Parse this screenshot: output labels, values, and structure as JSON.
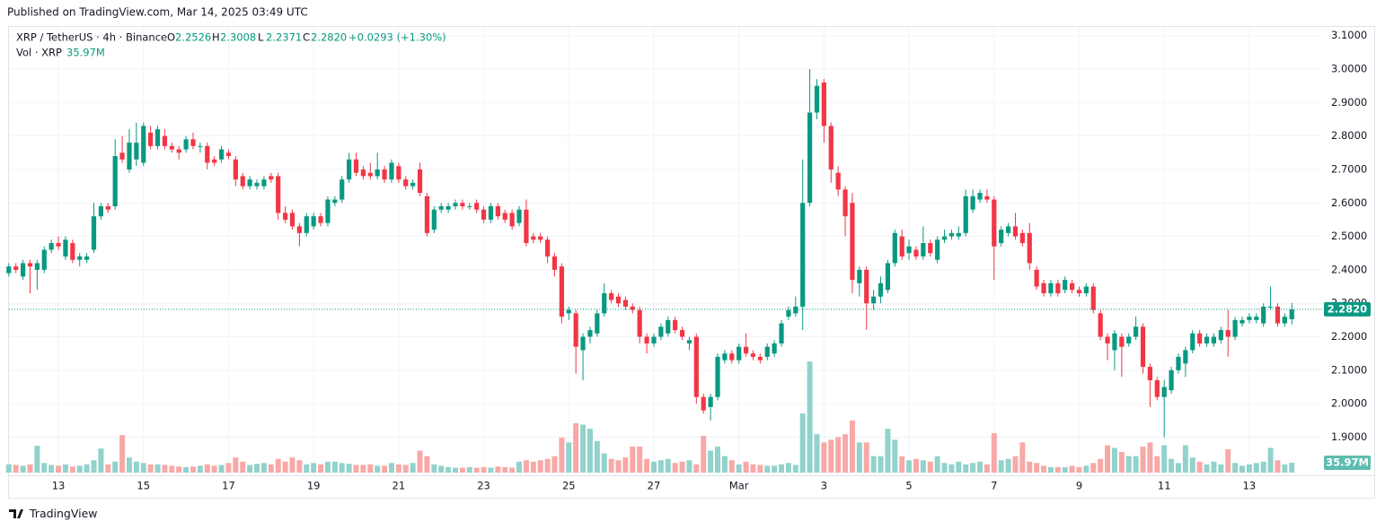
{
  "header": {
    "published": "Published on TradingView.com, Mar 14, 2025 03:49 UTC"
  },
  "legend": {
    "symbol": "XRP / TetherUS · 4h · Binance",
    "ohlc": [
      {
        "key": "O",
        "value": "2.2526"
      },
      {
        "key": "H",
        "value": "2.3008"
      },
      {
        "key": "L",
        "value": "2.2371"
      },
      {
        "key": "C",
        "value": "2.2820"
      }
    ],
    "change": "+0.0293 (+1.30%)",
    "volume_name": "Vol · XRP",
    "volume_value": "35.97M"
  },
  "footer": {
    "brand": "TradingView"
  },
  "chart_data": {
    "type": "candlestick",
    "grid": true,
    "up_color": "#089981",
    "down_color": "#f23645",
    "volume_up_color": "#92d2cc",
    "volume_down_color": "#f7a9a7",
    "ylim": [
      1.786,
      3.126
    ],
    "yticks": [
      {
        "value": 1.9,
        "label": "1.9000"
      },
      {
        "value": 2.0,
        "label": "2.0000"
      },
      {
        "value": 2.1,
        "label": "2.1000"
      },
      {
        "value": 2.2,
        "label": "2.2000"
      },
      {
        "value": 2.3,
        "label": "2.3000"
      },
      {
        "value": 2.4,
        "label": "2.4000"
      },
      {
        "value": 2.5,
        "label": "2.5000"
      },
      {
        "value": 2.6,
        "label": "2.6000"
      },
      {
        "value": 2.7,
        "label": "2.7000"
      },
      {
        "value": 2.8,
        "label": "2.8000"
      },
      {
        "value": 2.9,
        "label": "2.9000"
      },
      {
        "value": 3.0,
        "label": "3.0000"
      },
      {
        "value": 3.1,
        "label": "3.1000"
      }
    ],
    "volume_ylim": [
      0,
      1625
    ],
    "categories": [
      null,
      null,
      null,
      null,
      null,
      null,
      null,
      "13",
      null,
      null,
      null,
      null,
      null,
      null,
      null,
      null,
      null,
      null,
      null,
      "15",
      null,
      null,
      null,
      null,
      null,
      null,
      null,
      null,
      null,
      null,
      null,
      "17",
      null,
      null,
      null,
      null,
      null,
      null,
      null,
      null,
      null,
      null,
      null,
      "19",
      null,
      null,
      null,
      null,
      null,
      null,
      null,
      null,
      null,
      null,
      null,
      "21",
      null,
      null,
      null,
      null,
      null,
      null,
      null,
      null,
      null,
      null,
      null,
      "23",
      null,
      null,
      null,
      null,
      null,
      null,
      null,
      null,
      null,
      null,
      null,
      "25",
      null,
      null,
      null,
      null,
      null,
      null,
      null,
      null,
      null,
      null,
      null,
      "27",
      null,
      null,
      null,
      null,
      null,
      null,
      null,
      null,
      null,
      null,
      null,
      "Mar",
      null,
      null,
      null,
      null,
      null,
      null,
      null,
      null,
      null,
      null,
      null,
      "3",
      null,
      null,
      null,
      null,
      null,
      null,
      null,
      null,
      null,
      null,
      null,
      "5",
      null,
      null,
      null,
      null,
      null,
      null,
      null,
      null,
      null,
      null,
      null,
      "7",
      null,
      null,
      null,
      null,
      null,
      null,
      null,
      null,
      null,
      null,
      null,
      "9",
      null,
      null,
      null,
      null,
      null,
      null,
      null,
      null,
      null,
      null,
      null,
      "11",
      null,
      null,
      null,
      null,
      null,
      null,
      null,
      null,
      null,
      null,
      null,
      "13",
      null,
      null,
      null,
      null,
      null,
      null
    ],
    "ohlc": [
      [
        2.39,
        2.42,
        2.38,
        2.41
      ],
      [
        2.41,
        2.42,
        2.39,
        2.4
      ],
      [
        2.38,
        2.43,
        2.37,
        2.42
      ],
      [
        2.42,
        2.43,
        2.33,
        2.41
      ],
      [
        2.4,
        2.43,
        2.34,
        2.42
      ],
      [
        2.4,
        2.47,
        2.39,
        2.46
      ],
      [
        2.46,
        2.49,
        2.45,
        2.48
      ],
      [
        2.48,
        2.5,
        2.46,
        2.47
      ],
      [
        2.44,
        2.5,
        2.43,
        2.49
      ],
      [
        2.48,
        2.49,
        2.42,
        2.43
      ],
      [
        2.43,
        2.45,
        2.41,
        2.44
      ],
      [
        2.43,
        2.45,
        2.42,
        2.44
      ],
      [
        2.46,
        2.6,
        2.45,
        2.56
      ],
      [
        2.56,
        2.6,
        2.55,
        2.59
      ],
      [
        2.59,
        2.6,
        2.57,
        2.58
      ],
      [
        2.59,
        2.79,
        2.58,
        2.74
      ],
      [
        2.75,
        2.8,
        2.72,
        2.73
      ],
      [
        2.7,
        2.82,
        2.69,
        2.78
      ],
      [
        2.73,
        2.84,
        2.71,
        2.78
      ],
      [
        2.72,
        2.84,
        2.71,
        2.83
      ],
      [
        2.81,
        2.83,
        2.76,
        2.77
      ],
      [
        2.77,
        2.83,
        2.76,
        2.82
      ],
      [
        2.8,
        2.82,
        2.76,
        2.77
      ],
      [
        2.77,
        2.78,
        2.75,
        2.76
      ],
      [
        2.76,
        2.77,
        2.73,
        2.75
      ],
      [
        2.76,
        2.8,
        2.75,
        2.79
      ],
      [
        2.79,
        2.81,
        2.76,
        2.77
      ],
      [
        2.77,
        2.78,
        2.75,
        2.77
      ],
      [
        2.77,
        2.78,
        2.7,
        2.72
      ],
      [
        2.73,
        2.74,
        2.71,
        2.72
      ],
      [
        2.73,
        2.77,
        2.72,
        2.76
      ],
      [
        2.75,
        2.76,
        2.73,
        2.74
      ],
      [
        2.73,
        2.74,
        2.65,
        2.67
      ],
      [
        2.68,
        2.69,
        2.64,
        2.65
      ],
      [
        2.65,
        2.68,
        2.64,
        2.67
      ],
      [
        2.65,
        2.67,
        2.64,
        2.66
      ],
      [
        2.65,
        2.68,
        2.64,
        2.67
      ],
      [
        2.68,
        2.69,
        2.66,
        2.67
      ],
      [
        2.68,
        2.69,
        2.55,
        2.57
      ],
      [
        2.57,
        2.59,
        2.54,
        2.55
      ],
      [
        2.57,
        2.58,
        2.52,
        2.53
      ],
      [
        2.53,
        2.54,
        2.47,
        2.51
      ],
      [
        2.51,
        2.57,
        2.5,
        2.56
      ],
      [
        2.53,
        2.57,
        2.52,
        2.56
      ],
      [
        2.56,
        2.57,
        2.53,
        2.54
      ],
      [
        2.54,
        2.62,
        2.53,
        2.61
      ],
      [
        2.6,
        2.62,
        2.59,
        2.61
      ],
      [
        2.61,
        2.68,
        2.6,
        2.67
      ],
      [
        2.67,
        2.75,
        2.66,
        2.73
      ],
      [
        2.73,
        2.75,
        2.68,
        2.69
      ],
      [
        2.7,
        2.71,
        2.67,
        2.68
      ],
      [
        2.69,
        2.72,
        2.67,
        2.68
      ],
      [
        2.68,
        2.75,
        2.67,
        2.7
      ],
      [
        2.7,
        2.71,
        2.66,
        2.67
      ],
      [
        2.67,
        2.73,
        2.66,
        2.72
      ],
      [
        2.71,
        2.72,
        2.66,
        2.67
      ],
      [
        2.67,
        2.68,
        2.64,
        2.65
      ],
      [
        2.65,
        2.67,
        2.64,
        2.66
      ],
      [
        2.7,
        2.72,
        2.62,
        2.63
      ],
      [
        2.62,
        2.63,
        2.5,
        2.51
      ],
      [
        2.52,
        2.59,
        2.51,
        2.58
      ],
      [
        2.58,
        2.6,
        2.57,
        2.59
      ],
      [
        2.58,
        2.6,
        2.57,
        2.59
      ],
      [
        2.59,
        2.61,
        2.58,
        2.6
      ],
      [
        2.6,
        2.61,
        2.58,
        2.59
      ],
      [
        2.59,
        2.6,
        2.58,
        2.59
      ],
      [
        2.6,
        2.61,
        2.57,
        2.58
      ],
      [
        2.58,
        2.59,
        2.54,
        2.55
      ],
      [
        2.55,
        2.6,
        2.54,
        2.59
      ],
      [
        2.59,
        2.6,
        2.55,
        2.56
      ],
      [
        2.57,
        2.58,
        2.54,
        2.55
      ],
      [
        2.57,
        2.58,
        2.52,
        2.53
      ],
      [
        2.54,
        2.59,
        2.53,
        2.58
      ],
      [
        2.58,
        2.61,
        2.47,
        2.48
      ],
      [
        2.5,
        2.51,
        2.48,
        2.49
      ],
      [
        2.5,
        2.51,
        2.48,
        2.49
      ],
      [
        2.49,
        2.5,
        2.42,
        2.44
      ],
      [
        2.44,
        2.45,
        2.38,
        2.4
      ],
      [
        2.41,
        2.42,
        2.24,
        2.26
      ],
      [
        2.27,
        2.29,
        2.25,
        2.28
      ],
      [
        2.27,
        2.28,
        2.09,
        2.17
      ],
      [
        2.16,
        2.21,
        2.07,
        2.2
      ],
      [
        2.2,
        2.23,
        2.18,
        2.22
      ],
      [
        2.21,
        2.28,
        2.2,
        2.27
      ],
      [
        2.27,
        2.36,
        2.26,
        2.33
      ],
      [
        2.33,
        2.34,
        2.3,
        2.31
      ],
      [
        2.32,
        2.33,
        2.29,
        2.3
      ],
      [
        2.31,
        2.32,
        2.28,
        2.29
      ],
      [
        2.29,
        2.3,
        2.27,
        2.28
      ],
      [
        2.28,
        2.29,
        2.18,
        2.2
      ],
      [
        2.2,
        2.21,
        2.15,
        2.18
      ],
      [
        2.18,
        2.21,
        2.17,
        2.2
      ],
      [
        2.2,
        2.24,
        2.19,
        2.23
      ],
      [
        2.21,
        2.26,
        2.2,
        2.25
      ],
      [
        2.25,
        2.26,
        2.21,
        2.22
      ],
      [
        2.22,
        2.23,
        2.19,
        2.2
      ],
      [
        2.18,
        2.2,
        2.16,
        2.19
      ],
      [
        2.2,
        2.21,
        2.0,
        2.02
      ],
      [
        2.02,
        2.03,
        1.97,
        1.98
      ],
      [
        1.99,
        2.03,
        1.95,
        2.02
      ],
      [
        2.02,
        2.15,
        2.01,
        2.14
      ],
      [
        2.13,
        2.16,
        2.12,
        2.15
      ],
      [
        2.15,
        2.16,
        2.12,
        2.13
      ],
      [
        2.13,
        2.18,
        2.12,
        2.17
      ],
      [
        2.17,
        2.21,
        2.14,
        2.15
      ],
      [
        2.15,
        2.16,
        2.13,
        2.14
      ],
      [
        2.14,
        2.15,
        2.12,
        2.13
      ],
      [
        2.14,
        2.18,
        2.13,
        2.17
      ],
      [
        2.15,
        2.19,
        2.14,
        2.18
      ],
      [
        2.18,
        2.25,
        2.17,
        2.24
      ],
      [
        2.26,
        2.29,
        2.25,
        2.28
      ],
      [
        2.27,
        2.32,
        2.26,
        2.29
      ],
      [
        2.29,
        2.73,
        2.22,
        2.6
      ],
      [
        2.6,
        3.0,
        2.59,
        2.87
      ],
      [
        2.87,
        2.97,
        2.85,
        2.95
      ],
      [
        2.96,
        2.97,
        2.78,
        2.83
      ],
      [
        2.83,
        2.84,
        2.66,
        2.7
      ],
      [
        2.69,
        2.71,
        2.62,
        2.64
      ],
      [
        2.64,
        2.65,
        2.5,
        2.56
      ],
      [
        2.6,
        2.63,
        2.33,
        2.37
      ],
      [
        2.36,
        2.41,
        2.32,
        2.4
      ],
      [
        2.4,
        2.41,
        2.22,
        2.3
      ],
      [
        2.3,
        2.34,
        2.28,
        2.32
      ],
      [
        2.32,
        2.38,
        2.3,
        2.36
      ],
      [
        2.34,
        2.43,
        2.33,
        2.42
      ],
      [
        2.42,
        2.52,
        2.41,
        2.51
      ],
      [
        2.5,
        2.52,
        2.43,
        2.44
      ],
      [
        2.45,
        2.49,
        2.43,
        2.47
      ],
      [
        2.46,
        2.47,
        2.43,
        2.44
      ],
      [
        2.44,
        2.53,
        2.43,
        2.48
      ],
      [
        2.48,
        2.49,
        2.44,
        2.45
      ],
      [
        2.43,
        2.5,
        2.42,
        2.49
      ],
      [
        2.49,
        2.52,
        2.48,
        2.5
      ],
      [
        2.5,
        2.52,
        2.49,
        2.51
      ],
      [
        2.5,
        2.53,
        2.49,
        2.51
      ],
      [
        2.51,
        2.64,
        2.5,
        2.62
      ],
      [
        2.58,
        2.64,
        2.57,
        2.62
      ],
      [
        2.61,
        2.64,
        2.6,
        2.63
      ],
      [
        2.62,
        2.64,
        2.6,
        2.61
      ],
      [
        2.61,
        2.62,
        2.37,
        2.47
      ],
      [
        2.48,
        2.53,
        2.47,
        2.52
      ],
      [
        2.51,
        2.54,
        2.5,
        2.53
      ],
      [
        2.53,
        2.57,
        2.49,
        2.5
      ],
      [
        2.51,
        2.52,
        2.47,
        2.48
      ],
      [
        2.51,
        2.54,
        2.4,
        2.42
      ],
      [
        2.4,
        2.41,
        2.34,
        2.35
      ],
      [
        2.36,
        2.37,
        2.32,
        2.33
      ],
      [
        2.33,
        2.37,
        2.32,
        2.36
      ],
      [
        2.36,
        2.37,
        2.32,
        2.33
      ],
      [
        2.34,
        2.38,
        2.33,
        2.37
      ],
      [
        2.36,
        2.37,
        2.33,
        2.34
      ],
      [
        2.34,
        2.35,
        2.32,
        2.33
      ],
      [
        2.33,
        2.36,
        2.32,
        2.35
      ],
      [
        2.35,
        2.36,
        2.27,
        2.28
      ],
      [
        2.27,
        2.28,
        2.19,
        2.2
      ],
      [
        2.2,
        2.21,
        2.13,
        2.18
      ],
      [
        2.16,
        2.22,
        2.1,
        2.21
      ],
      [
        2.2,
        2.21,
        2.08,
        2.17
      ],
      [
        2.18,
        2.21,
        2.17,
        2.2
      ],
      [
        2.2,
        2.26,
        2.19,
        2.23
      ],
      [
        2.23,
        2.24,
        2.09,
        2.11
      ],
      [
        2.11,
        2.12,
        1.99,
        2.07
      ],
      [
        2.07,
        2.08,
        2.01,
        2.02
      ],
      [
        2.02,
        2.07,
        1.9,
        2.05
      ],
      [
        2.04,
        2.11,
        2.03,
        2.1
      ],
      [
        2.1,
        2.15,
        2.09,
        2.14
      ],
      [
        2.12,
        2.17,
        2.08,
        2.16
      ],
      [
        2.16,
        2.22,
        2.15,
        2.21
      ],
      [
        2.21,
        2.22,
        2.17,
        2.18
      ],
      [
        2.18,
        2.21,
        2.17,
        2.2
      ],
      [
        2.18,
        2.21,
        2.17,
        2.2
      ],
      [
        2.19,
        2.23,
        2.18,
        2.22
      ],
      [
        2.22,
        2.28,
        2.14,
        2.2
      ],
      [
        2.2,
        2.26,
        2.19,
        2.25
      ],
      [
        2.24,
        2.26,
        2.23,
        2.25
      ],
      [
        2.25,
        2.27,
        2.24,
        2.26
      ],
      [
        2.25,
        2.27,
        2.24,
        2.26
      ],
      [
        2.24,
        2.3,
        2.23,
        2.29
      ],
      [
        2.29,
        2.35,
        2.28,
        2.29
      ],
      [
        2.29,
        2.3,
        2.23,
        2.24
      ],
      [
        2.24,
        2.27,
        2.23,
        2.26
      ],
      [
        2.2526,
        2.3008,
        2.2371,
        2.282
      ]
    ],
    "volume": [
      30,
      28,
      25,
      30,
      98,
      35,
      28,
      25,
      30,
      22,
      25,
      30,
      45,
      88,
      30,
      40,
      137,
      55,
      40,
      35,
      30,
      30,
      28,
      25,
      22,
      20,
      22,
      25,
      30,
      25,
      28,
      35,
      55,
      40,
      28,
      32,
      35,
      30,
      50,
      40,
      55,
      45,
      30,
      35,
      30,
      40,
      40,
      35,
      32,
      28,
      28,
      30,
      25,
      25,
      35,
      30,
      28,
      35,
      80,
      60,
      30,
      25,
      20,
      18,
      18,
      20,
      18,
      20,
      18,
      22,
      20,
      18,
      40,
      45,
      40,
      45,
      50,
      60,
      127,
      110,
      180,
      175,
      160,
      115,
      70,
      50,
      45,
      55,
      95,
      95,
      50,
      40,
      45,
      50,
      35,
      40,
      45,
      30,
      134,
      80,
      95,
      60,
      45,
      30,
      40,
      30,
      28,
      25,
      25,
      30,
      35,
      28,
      216,
      405,
      140,
      110,
      120,
      130,
      140,
      190,
      110,
      110,
      60,
      60,
      160,
      120,
      60,
      45,
      50,
      45,
      40,
      60,
      35,
      30,
      40,
      30,
      35,
      40,
      30,
      144,
      45,
      50,
      60,
      110,
      40,
      35,
      25,
      20,
      20,
      20,
      25,
      20,
      25,
      35,
      50,
      100,
      90,
      75,
      60,
      60,
      95,
      110,
      60,
      100,
      50,
      35,
      100,
      55,
      40,
      30,
      40,
      30,
      85,
      35,
      25,
      30,
      35,
      40,
      90,
      45,
      30,
      35.97
    ]
  }
}
